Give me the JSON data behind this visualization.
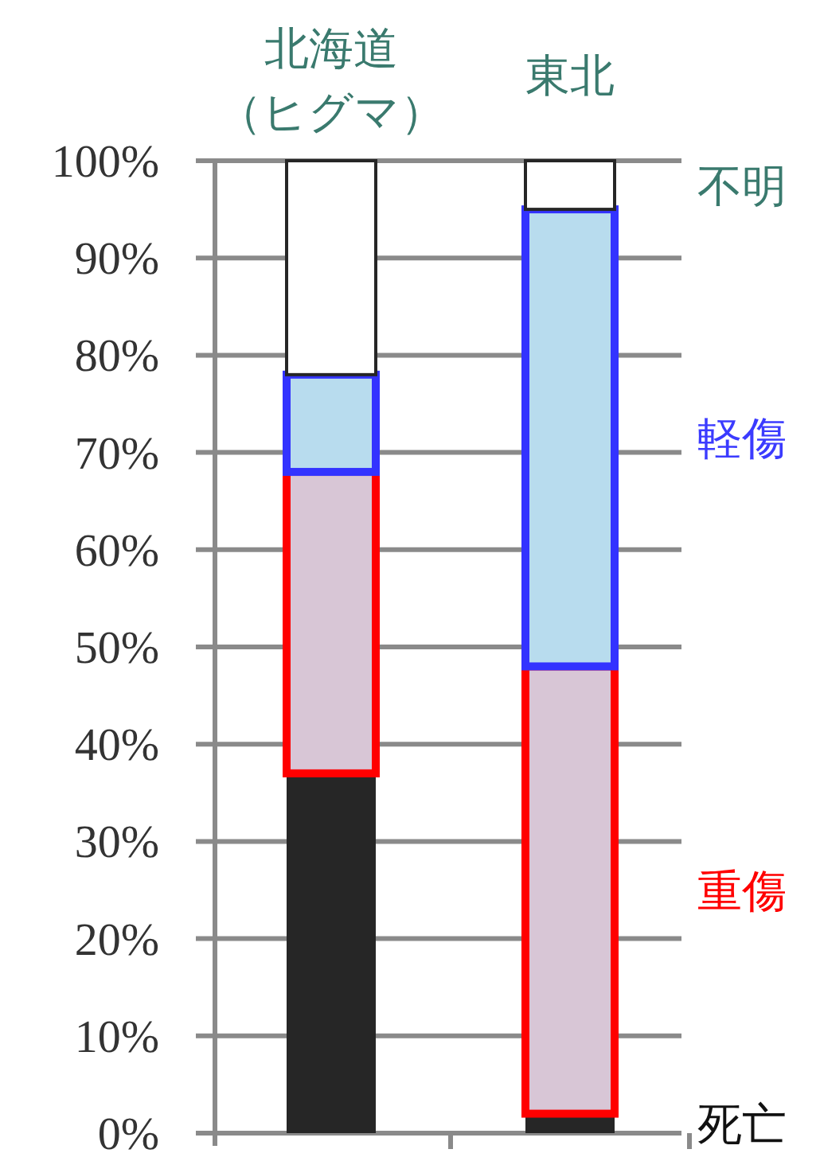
{
  "chart_data": {
    "type": "bar",
    "stacked": true,
    "categories": [
      "北海道（ヒグマ）",
      "東北"
    ],
    "series": [
      {
        "name": "死亡",
        "color": "#262626",
        "values": [
          37,
          2
        ]
      },
      {
        "name": "重傷",
        "color": "#d8c6d6",
        "values": [
          31,
          46
        ]
      },
      {
        "name": "軽傷",
        "color": "#b8dcee",
        "values": [
          10,
          47
        ]
      },
      {
        "name": "不明",
        "color": "#ffffff",
        "values": [
          22,
          5
        ]
      }
    ],
    "ylim": [
      0,
      100
    ],
    "yticks": [
      {
        "value": 0,
        "label": "0%"
      },
      {
        "value": 10,
        "label": "10%"
      },
      {
        "value": 20,
        "label": "20%"
      },
      {
        "value": 30,
        "label": "30%"
      },
      {
        "value": 40,
        "label": "40%"
      },
      {
        "value": 50,
        "label": "50%"
      },
      {
        "value": 60,
        "label": "60%"
      },
      {
        "value": 70,
        "label": "70%"
      },
      {
        "value": 80,
        "label": "80%"
      },
      {
        "value": 90,
        "label": "90%"
      },
      {
        "value": 100,
        "label": "100%"
      }
    ],
    "grid": "y",
    "legend": false
  }
}
